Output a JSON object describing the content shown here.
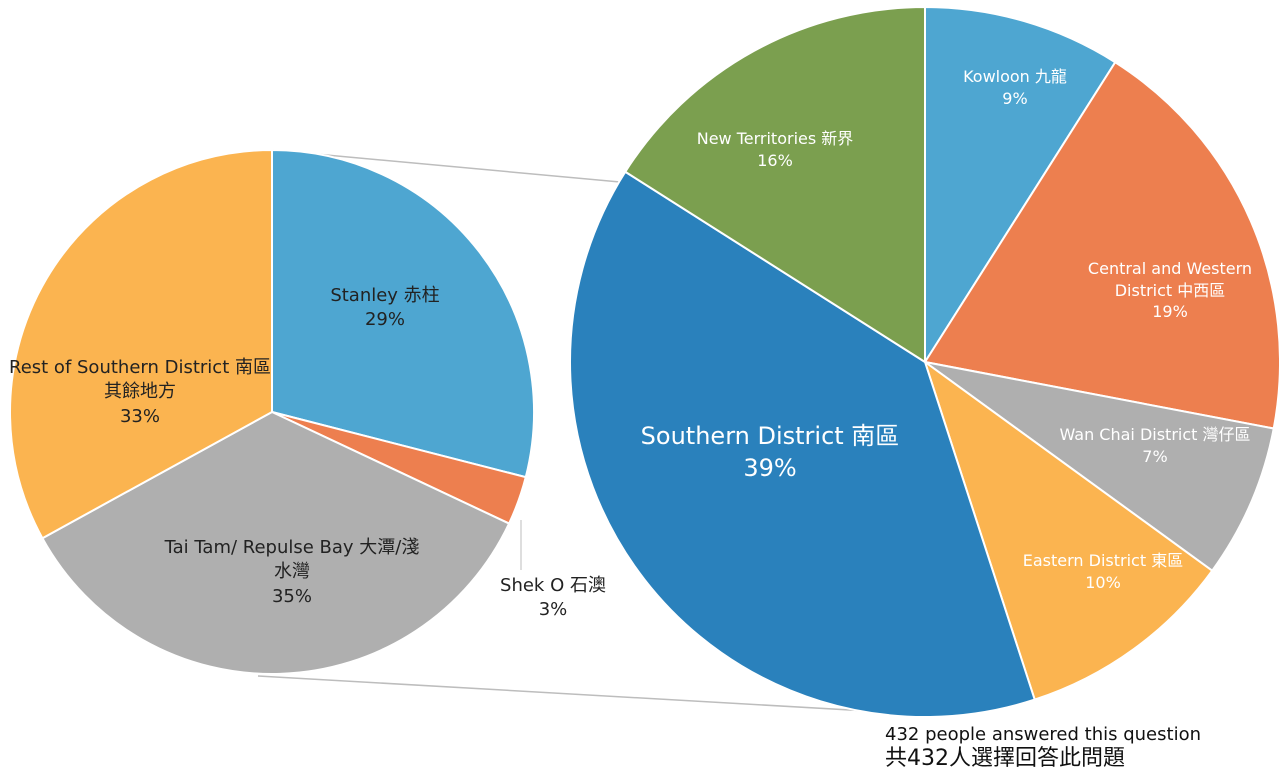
{
  "chart_data": [
    {
      "type": "pie",
      "categories": [
        "Kowloon 九龍",
        "Central and Western District 中西區",
        "Wan Chai District 灣仔區",
        "Eastern District 東區",
        "Southern District 南區",
        "New Territories 新界"
      ],
      "values": [
        9,
        19,
        7,
        10,
        39,
        16
      ],
      "value_labels": [
        "9%",
        "19%",
        "7%",
        "10%",
        "39%",
        "16%"
      ],
      "colors": [
        "#4ea6d1",
        "#ed7f4f",
        "#afafaf",
        "#fbb450",
        "#2a81bc",
        "#7b9f4f"
      ],
      "annotations": [
        "432 people answered this question",
        "共432人選擇回答此問題"
      ]
    },
    {
      "type": "pie",
      "categories": [
        "Stanley 赤柱",
        "Shek O 石澳",
        "Tai Tam/ Repulse Bay 大潭/淺水灣",
        "Rest of Southern District 南區其餘地方"
      ],
      "values": [
        29,
        3,
        35,
        33
      ],
      "value_labels": [
        "29%",
        "3%",
        "35%",
        "33%"
      ],
      "colors": [
        "#4ea6d1",
        "#ed7f4f",
        "#afafaf",
        "#fbb450"
      ]
    }
  ]
}
